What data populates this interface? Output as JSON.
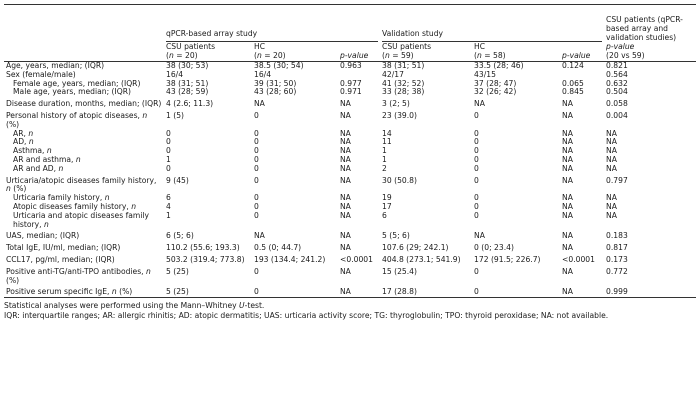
{
  "header": {
    "group_qpcr": "qPCR-based array study",
    "group_validation": "Validation study",
    "group_final": "CSU patients (qPCR-based array and validation studies)",
    "csu_qpcr": "CSU patients",
    "csu_qpcr_n": "(n = 20)",
    "hc_qpcr": "HC",
    "hc_qpcr_n": "(n = 20)",
    "p_qpcr": "p-value",
    "csu_val": "CSU patients",
    "csu_val_n": "(n = 59)",
    "hc_val": "HC",
    "hc_val_n": "(n = 58)",
    "p_val": "p-value",
    "p_final": "p-value",
    "p_final_sub": "(20 vs 59)"
  },
  "rows": [
    {
      "label": "Age, years, median; (IQR)",
      "c1": "38 (30; 53)",
      "c2": "38.5 (30; 54)",
      "c3": "0.963",
      "c4": "38 (31; 51)",
      "c5": "33.5 (28; 46)",
      "c6": "0.124",
      "c7": "0.821"
    },
    {
      "label": "Sex (female/male)",
      "c1": "16/4",
      "c2": "16/4",
      "c3": "",
      "c4": "42/17",
      "c5": "43/15",
      "c6": "",
      "c7": "0.564"
    },
    {
      "label": "Female age, years, median; (IQR)",
      "c1": "38 (31; 51)",
      "c2": "39 (31; 50)",
      "c3": "0.977",
      "c4": "41 (32; 52)",
      "c5": "37 (28; 47)",
      "c6": "0.065",
      "c7": "0.632"
    },
    {
      "label": "Male age, years, median; (IQR)",
      "c1": "43 (28; 59)",
      "c2": "43 (28; 60)",
      "c3": "0.971",
      "c4": "33 (28; 38)",
      "c5": "32 (26; 42)",
      "c6": "0.845",
      "c7": "0.504"
    },
    {
      "label": "Disease duration, months, median; (IQR)",
      "c1": "4 (2.6; 11.3)",
      "c2": "NA",
      "c3": "NA",
      "c4": "3 (2; 5)",
      "c5": "NA",
      "c6": "NA",
      "c7": "0.058"
    },
    {
      "label": "Personal history of atopic diseases, n (%)",
      "c1": "1 (5)",
      "c2": "0",
      "c3": "NA",
      "c4": "23 (39.0)",
      "c5": "0",
      "c6": "NA",
      "c7": "0.004"
    },
    {
      "label": "AR, n",
      "c1": "0",
      "c2": "0",
      "c3": "NA",
      "c4": "14",
      "c5": "0",
      "c6": "NA",
      "c7": "NA"
    },
    {
      "label": "AD, n",
      "c1": "0",
      "c2": "0",
      "c3": "NA",
      "c4": "11",
      "c5": "0",
      "c6": "NA",
      "c7": "NA"
    },
    {
      "label": "Asthma, n",
      "c1": "0",
      "c2": "0",
      "c3": "NA",
      "c4": "1",
      "c5": "0",
      "c6": "NA",
      "c7": "NA"
    },
    {
      "label": "AR and asthma, n",
      "c1": "1",
      "c2": "0",
      "c3": "NA",
      "c4": "1",
      "c5": "0",
      "c6": "NA",
      "c7": "NA"
    },
    {
      "label": "AR and AD, n",
      "c1": "0",
      "c2": "0",
      "c3": "NA",
      "c4": "2",
      "c5": "0",
      "c6": "NA",
      "c7": "NA"
    },
    {
      "label": "Urticaria/atopic diseases family history, n (%)",
      "c1": "9 (45)",
      "c2": "0",
      "c3": "NA",
      "c4": "30 (50.8)",
      "c5": "0",
      "c6": "NA",
      "c7": "0.797"
    },
    {
      "label": "Urticaria family history, n",
      "c1": "6",
      "c2": "0",
      "c3": "NA",
      "c4": "19",
      "c5": "0",
      "c6": "NA",
      "c7": "NA"
    },
    {
      "label": "Atopic diseases family history, n",
      "c1": "4",
      "c2": "0",
      "c3": "NA",
      "c4": "17",
      "c5": "0",
      "c6": "NA",
      "c7": "NA"
    },
    {
      "label": "Urticaria and atopic diseases family history, n",
      "c1": "1",
      "c2": "0",
      "c3": "NA",
      "c4": "6",
      "c5": "0",
      "c6": "NA",
      "c7": "NA"
    },
    {
      "label": "UAS, median; (IQR)",
      "c1": "6 (5; 6)",
      "c2": "NA",
      "c3": "NA",
      "c4": "5 (5; 6)",
      "c5": "NA",
      "c6": "NA",
      "c7": "0.183"
    },
    {
      "label": "Total IgE, IU/ml, median; (IQR)",
      "c1": "110.2 (55.6; 193.3)",
      "c2": "0.5 (0; 44.7)",
      "c3": "NA",
      "c4": "107.6 (29; 242.1)",
      "c5": "0 (0; 23.4)",
      "c6": "NA",
      "c7": "0.817"
    },
    {
      "label": "CCL17, pg/ml, median; (IQR)",
      "c1": "503.2 (319.4; 773.8)",
      "c2": "193 (134.4; 241.2)",
      "c3": "<0.0001",
      "c4": "404.8 (273.1; 541.9)",
      "c5": "172 (91.5; 226.7)",
      "c6": "<0.0001",
      "c7": "0.173"
    },
    {
      "label": "Positive anti-TG/anti-TPO antibodies, n (%)",
      "c1": "5 (25)",
      "c2": "0",
      "c3": "NA",
      "c4": "15 (25.4)",
      "c5": "0",
      "c6": "NA",
      "c7": "0.772"
    },
    {
      "label": "Positive serum specific IgE, n (%)",
      "c1": "5 (25)",
      "c2": "0",
      "c3": "NA",
      "c4": "17 (28.8)",
      "c5": "0",
      "c6": "NA",
      "c7": "0.999"
    }
  ],
  "footnotes": {
    "line1": "Statistical analyses were performed using the Mann–Whitney U-test.",
    "line2": "IQR: interquartile ranges; AR: allergic rhinitis; AD: atopic dermatitis; UAS: urticaria activity score; TG: thyroglobulin; TPO: thyroid peroxidase; NA: not available."
  }
}
